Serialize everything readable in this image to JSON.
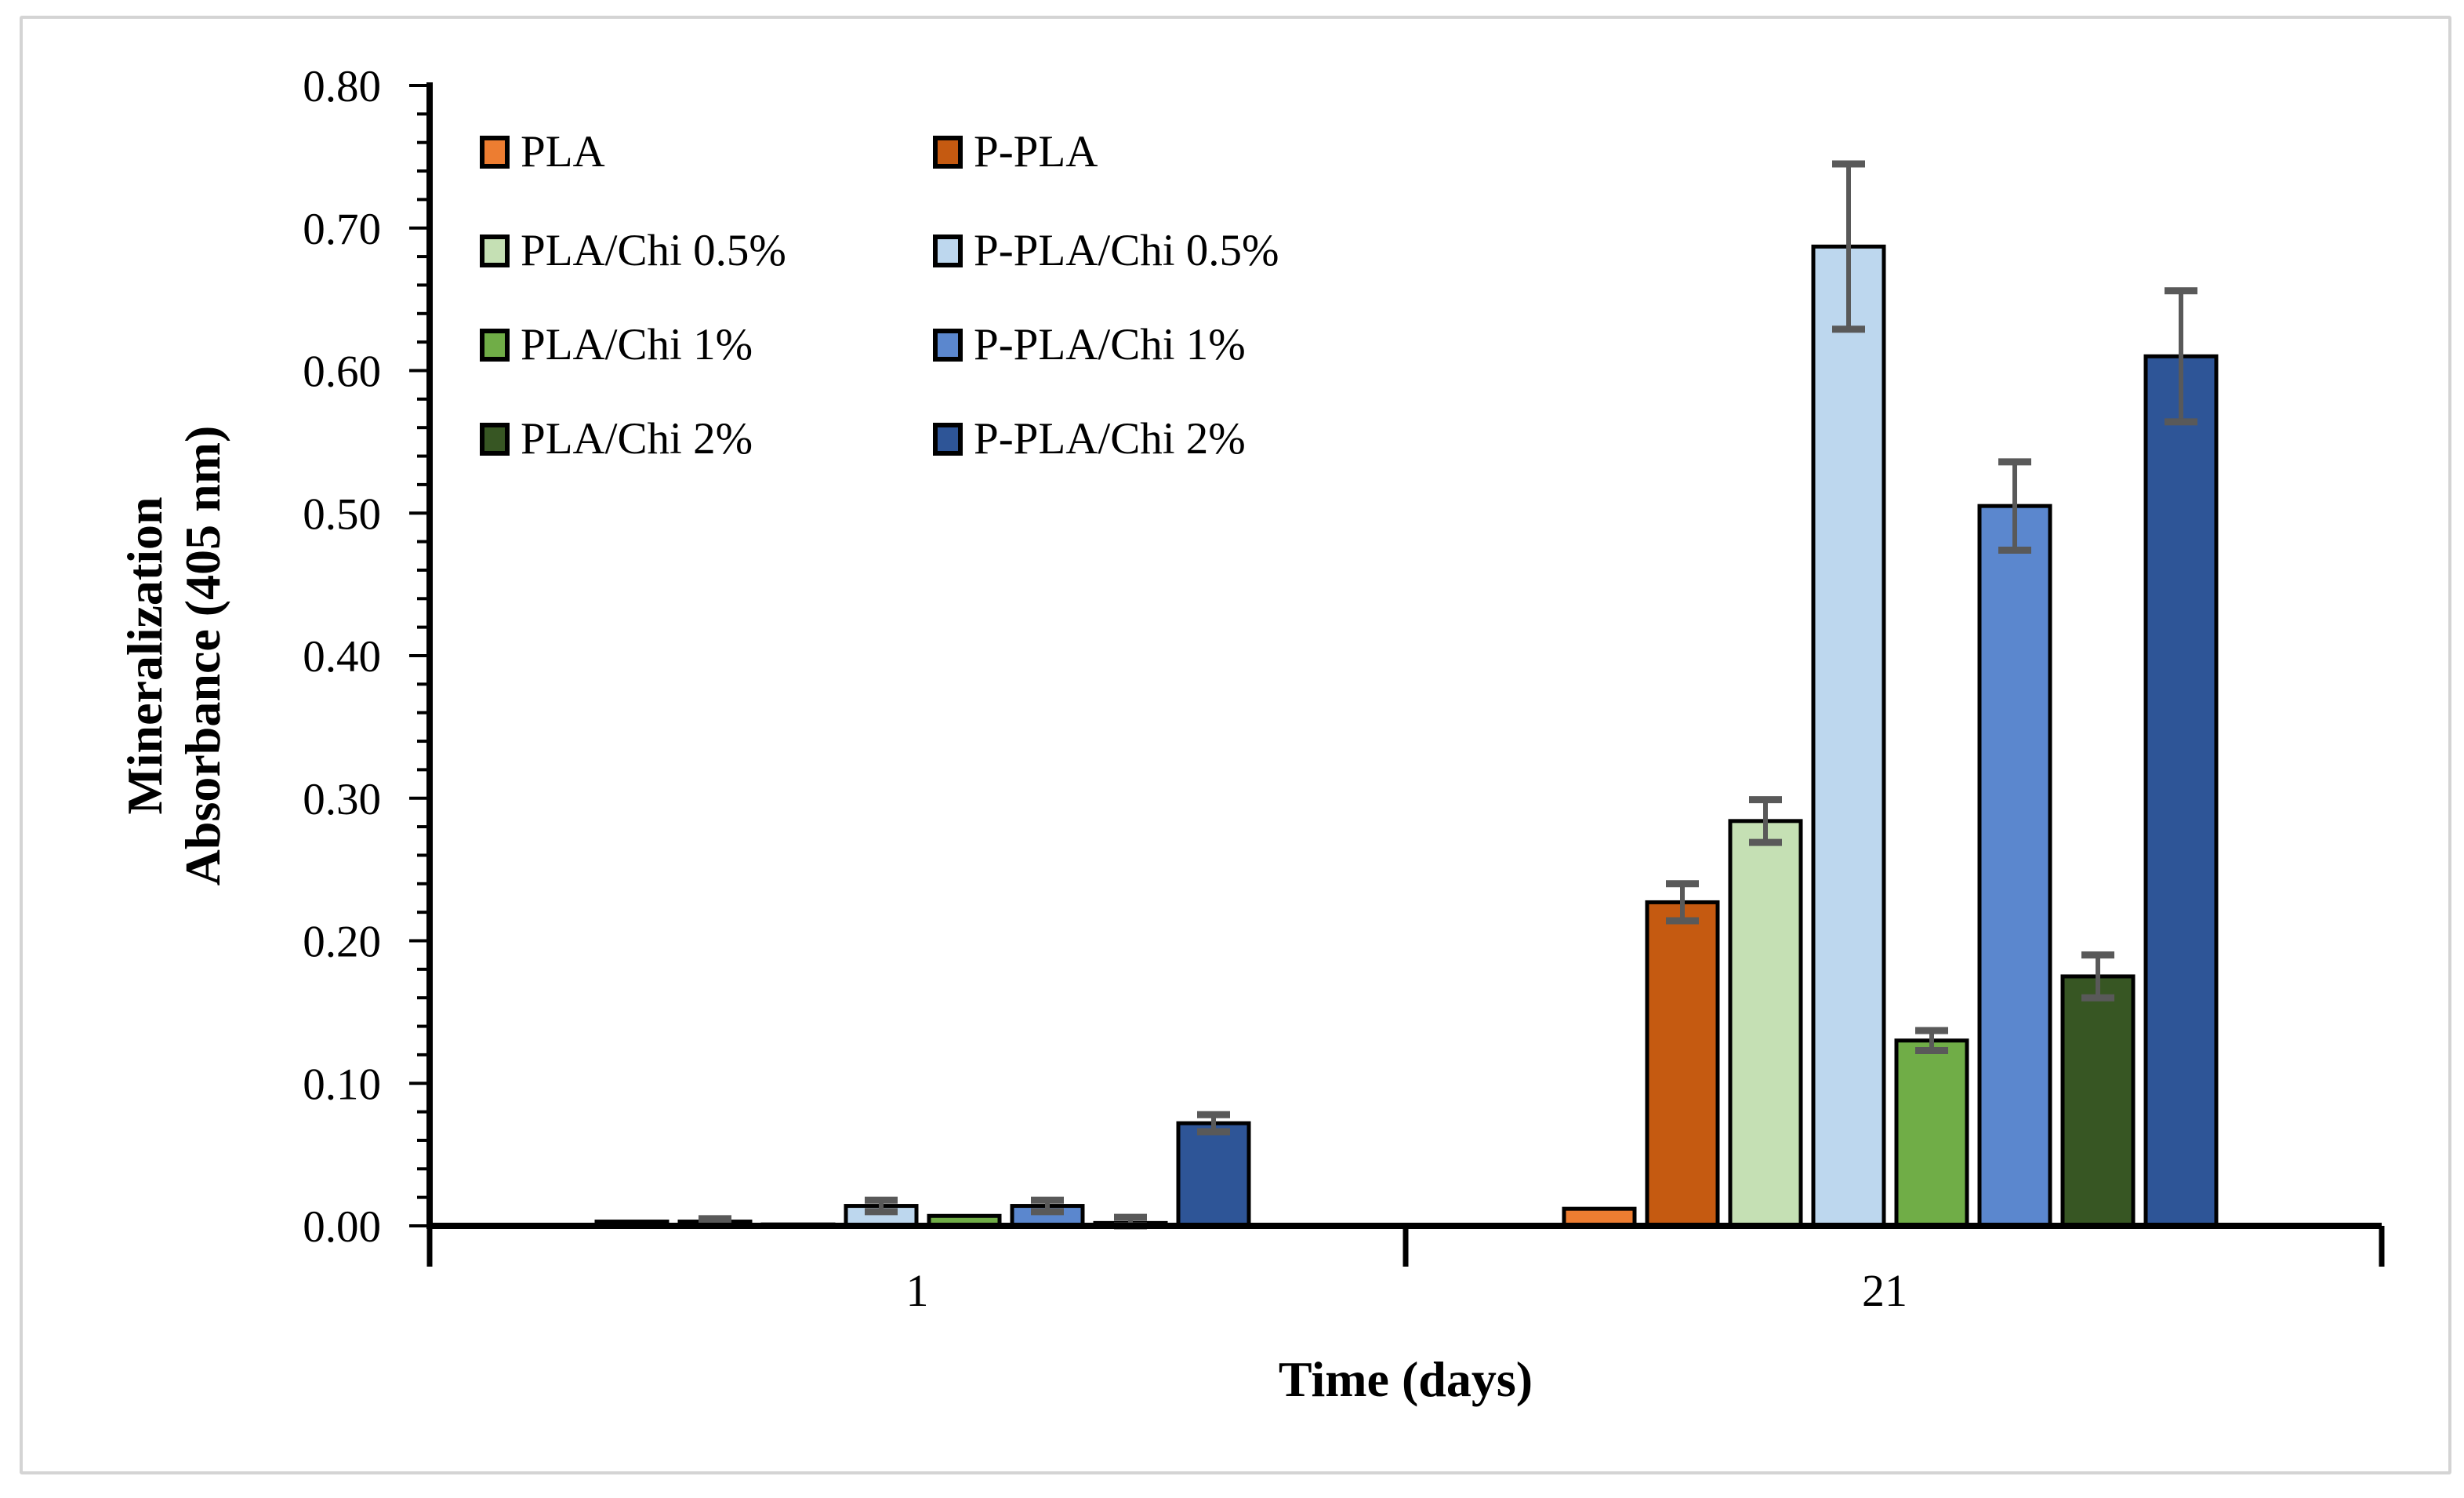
{
  "figure": {
    "background": "#FFFFFF",
    "border_color": "#D4D4D4"
  },
  "chart_data": {
    "type": "bar",
    "title": "",
    "xlabel": "Time (days)",
    "ylabel_line1": "Mineralization",
    "ylabel_line2": "Absorbance (405 nm)",
    "categories": [
      "1",
      "21"
    ],
    "series": [
      {
        "name": "PLA",
        "color": "#ED7D31",
        "values": [
          0.003,
          0.012
        ],
        "errors": [
          0.0,
          0.0
        ]
      },
      {
        "name": "P-PLA",
        "color": "#C55A11",
        "values": [
          0.003,
          0.227
        ],
        "errors": [
          0.002,
          0.013
        ]
      },
      {
        "name": "PLA/Chi 0.5%",
        "color": "#C5E0B4",
        "values": [
          0.001,
          0.284
        ],
        "errors": [
          0.0,
          0.015
        ]
      },
      {
        "name": "P-PLA/Chi 0.5%",
        "color": "#BDD7EE",
        "values": [
          0.014,
          0.687
        ],
        "errors": [
          0.004,
          0.058
        ]
      },
      {
        "name": "PLA/Chi 1%",
        "color": "#70AD47",
        "values": [
          0.007,
          0.13
        ],
        "errors": [
          0.0,
          0.007
        ]
      },
      {
        "name": "P-PLA/Chi 1%",
        "color": "#5B87CE",
        "values": [
          0.014,
          0.505
        ],
        "errors": [
          0.004,
          0.031
        ]
      },
      {
        "name": "PLA/Chi 2%",
        "color": "#375623",
        "values": [
          0.002,
          0.175
        ],
        "errors": [
          0.004,
          0.015
        ]
      },
      {
        "name": "P-PLA/Chi 2%",
        "color": "#2E5597",
        "values": [
          0.072,
          0.61
        ],
        "errors": [
          0.006,
          0.046
        ]
      }
    ],
    "ylim": [
      0.0,
      0.8
    ],
    "ytick_labels": [
      "0.00",
      "0.10",
      "0.20",
      "0.30",
      "0.40",
      "0.50",
      "0.60",
      "0.70",
      "0.80"
    ],
    "ytick_major": 0.1,
    "ytick_minor": 0.02,
    "grid": false,
    "legend_position": "top-left-inside",
    "axis_color": "#000000",
    "bar_outline_color": "#000000",
    "error_bar_color": "#595959"
  }
}
